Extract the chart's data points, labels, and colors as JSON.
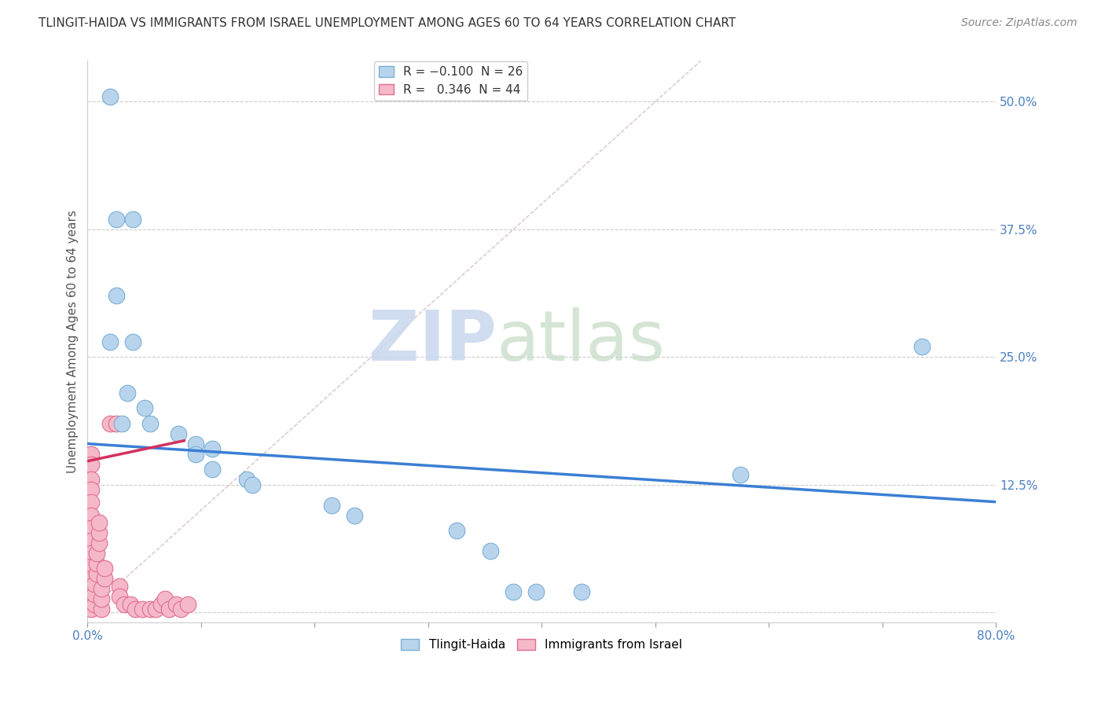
{
  "title": "TLINGIT-HAIDA VS IMMIGRANTS FROM ISRAEL UNEMPLOYMENT AMONG AGES 60 TO 64 YEARS CORRELATION CHART",
  "source": "Source: ZipAtlas.com",
  "ylabel": "Unemployment Among Ages 60 to 64 years",
  "xlim": [
    0.0,
    0.8
  ],
  "ylim": [
    -0.01,
    0.54
  ],
  "yticks": [
    0.0,
    0.125,
    0.25,
    0.375,
    0.5
  ],
  "ytick_labels": [
    "",
    "12.5%",
    "25.0%",
    "37.5%",
    "50.0%"
  ],
  "series1_name": "Tlingit-Haida",
  "series2_name": "Immigrants from Israel",
  "series1_color": "#b8d4ed",
  "series2_color": "#f5b8c8",
  "series1_edge_color": "#7bafd4",
  "series2_edge_color": "#e07090",
  "trendline1_color": "#3a7fd4",
  "trendline2_color": "#d43060",
  "watermark_zip": "ZIP",
  "watermark_atlas": "atlas",
  "trendline1_x": [
    0.0,
    0.8
  ],
  "trendline1_y": [
    0.165,
    0.108
  ],
  "trendline2_x": [
    0.0,
    0.085
  ],
  "trendline2_y": [
    0.148,
    0.168
  ],
  "diag_line_x": [
    0.0,
    0.54
  ],
  "diag_line_y": [
    0.0,
    0.54
  ],
  "legend_r1": "R = ",
  "legend_r1_val": "-0.100",
  "legend_n1": "  N = ",
  "legend_n1_val": "26",
  "legend_r2": "R =  ",
  "legend_r2_val": "0.346",
  "legend_n2": "  N = ",
  "legend_n2_val": "44",
  "series1_points": [
    [
      0.02,
      0.505
    ],
    [
      0.025,
      0.385
    ],
    [
      0.04,
      0.385
    ],
    [
      0.025,
      0.31
    ],
    [
      0.02,
      0.265
    ],
    [
      0.04,
      0.265
    ],
    [
      0.035,
      0.215
    ],
    [
      0.05,
      0.2
    ],
    [
      0.03,
      0.185
    ],
    [
      0.055,
      0.185
    ],
    [
      0.08,
      0.175
    ],
    [
      0.095,
      0.165
    ],
    [
      0.11,
      0.16
    ],
    [
      0.095,
      0.155
    ],
    [
      0.11,
      0.14
    ],
    [
      0.14,
      0.13
    ],
    [
      0.145,
      0.125
    ],
    [
      0.215,
      0.105
    ],
    [
      0.235,
      0.095
    ],
    [
      0.325,
      0.08
    ],
    [
      0.355,
      0.06
    ],
    [
      0.375,
      0.02
    ],
    [
      0.395,
      0.02
    ],
    [
      0.435,
      0.02
    ],
    [
      0.575,
      0.135
    ],
    [
      0.735,
      0.26
    ]
  ],
  "series2_points": [
    [
      0.003,
      0.155
    ],
    [
      0.003,
      0.145
    ],
    [
      0.003,
      0.13
    ],
    [
      0.003,
      0.12
    ],
    [
      0.003,
      0.108
    ],
    [
      0.003,
      0.095
    ],
    [
      0.003,
      0.082
    ],
    [
      0.003,
      0.07
    ],
    [
      0.003,
      0.058
    ],
    [
      0.003,
      0.045
    ],
    [
      0.003,
      0.033
    ],
    [
      0.003,
      0.022
    ],
    [
      0.003,
      0.012
    ],
    [
      0.003,
      0.003
    ],
    [
      0.006,
      0.008
    ],
    [
      0.006,
      0.018
    ],
    [
      0.006,
      0.028
    ],
    [
      0.008,
      0.038
    ],
    [
      0.008,
      0.048
    ],
    [
      0.008,
      0.058
    ],
    [
      0.01,
      0.068
    ],
    [
      0.01,
      0.078
    ],
    [
      0.01,
      0.088
    ],
    [
      0.012,
      0.003
    ],
    [
      0.012,
      0.013
    ],
    [
      0.012,
      0.023
    ],
    [
      0.015,
      0.033
    ],
    [
      0.015,
      0.043
    ],
    [
      0.02,
      0.185
    ],
    [
      0.025,
      0.185
    ],
    [
      0.028,
      0.025
    ],
    [
      0.028,
      0.015
    ],
    [
      0.032,
      0.008
    ],
    [
      0.038,
      0.008
    ],
    [
      0.042,
      0.003
    ],
    [
      0.048,
      0.003
    ],
    [
      0.055,
      0.003
    ],
    [
      0.06,
      0.003
    ],
    [
      0.065,
      0.008
    ],
    [
      0.068,
      0.013
    ],
    [
      0.072,
      0.003
    ],
    [
      0.078,
      0.008
    ],
    [
      0.082,
      0.003
    ],
    [
      0.088,
      0.008
    ]
  ],
  "grid_color": "#cccccc",
  "background_color": "#ffffff",
  "title_fontsize": 11,
  "axis_label_fontsize": 11,
  "tick_fontsize": 11,
  "source_fontsize": 10
}
